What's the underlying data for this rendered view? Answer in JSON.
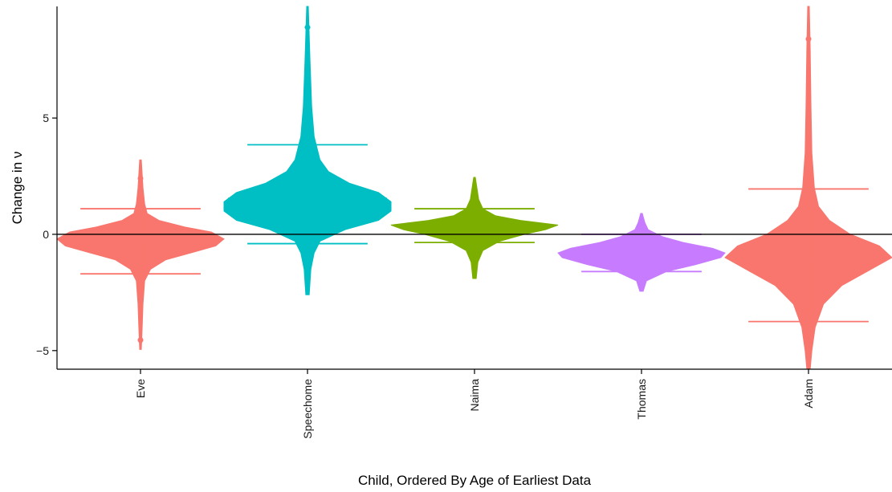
{
  "chart_data": {
    "type": "violin",
    "xlabel": "Child, Ordered By Age of Earliest Data",
    "ylabel": "Change in ν",
    "ylim": [
      -5.8,
      9.8
    ],
    "yticks": [
      -5,
      0,
      5
    ],
    "reference_line_y": 0,
    "grid": false,
    "legend": "none",
    "categories": [
      "Eve",
      "Speechome",
      "Naima",
      "Thomas",
      "Adam"
    ],
    "series": [
      {
        "category": "Eve",
        "color": "#F8766D",
        "mean": -0.25,
        "ci_upper": 1.1,
        "ci_lower": -1.7,
        "median": -0.2,
        "min": -4.95,
        "max": 3.2,
        "outlier_high": 2.4,
        "outlier_low": -4.55,
        "density_profile": [
          [
            -4.95,
            0.01
          ],
          [
            -4.0,
            0.02
          ],
          [
            -3.0,
            0.03
          ],
          [
            -2.0,
            0.05
          ],
          [
            -1.5,
            0.12
          ],
          [
            -1.1,
            0.3
          ],
          [
            -0.8,
            0.6
          ],
          [
            -0.5,
            0.9
          ],
          [
            -0.2,
            1.0
          ],
          [
            0.1,
            0.85
          ],
          [
            0.3,
            0.55
          ],
          [
            0.6,
            0.22
          ],
          [
            0.9,
            0.08
          ],
          [
            1.3,
            0.05
          ],
          [
            2.0,
            0.03
          ],
          [
            3.2,
            0.01
          ]
        ]
      },
      {
        "category": "Speechome",
        "color": "#00BFC4",
        "mean": 1.55,
        "ci_upper": 3.85,
        "ci_lower": -0.4,
        "median": 1.4,
        "min": -2.6,
        "max": 9.8,
        "outlier_high": 8.9,
        "outlier_low": -1.75,
        "density_profile": [
          [
            -2.6,
            0.02
          ],
          [
            -1.5,
            0.04
          ],
          [
            -0.8,
            0.08
          ],
          [
            -0.3,
            0.15
          ],
          [
            0.2,
            0.45
          ],
          [
            0.6,
            0.85
          ],
          [
            1.0,
            1.0
          ],
          [
            1.4,
            1.0
          ],
          [
            1.8,
            0.85
          ],
          [
            2.2,
            0.5
          ],
          [
            2.7,
            0.25
          ],
          [
            3.2,
            0.15
          ],
          [
            4.2,
            0.08
          ],
          [
            5.5,
            0.05
          ],
          [
            7.5,
            0.03
          ],
          [
            9.8,
            0.01
          ]
        ]
      },
      {
        "category": "Naima",
        "color": "#7CAE00",
        "mean": 0.4,
        "ci_upper": 1.1,
        "ci_lower": -0.35,
        "median": 0.4,
        "min": -1.9,
        "max": 2.45,
        "outlier_high": 1.95,
        "outlier_low": -1.45,
        "density_profile": [
          [
            -1.9,
            0.02
          ],
          [
            -1.2,
            0.04
          ],
          [
            -0.7,
            0.1
          ],
          [
            -0.3,
            0.3
          ],
          [
            0.0,
            0.6
          ],
          [
            0.2,
            0.85
          ],
          [
            0.4,
            1.0
          ],
          [
            0.6,
            0.55
          ],
          [
            0.8,
            0.25
          ],
          [
            1.1,
            0.1
          ],
          [
            1.5,
            0.05
          ],
          [
            2.45,
            0.01
          ]
        ]
      },
      {
        "category": "Thomas",
        "color": "#C77CFF",
        "mean": -0.8,
        "ci_upper": 0.0,
        "ci_lower": -1.6,
        "median": -0.8,
        "min": -2.45,
        "max": 0.9,
        "outlier_high": 0.6,
        "outlier_low": -2.2,
        "density_profile": [
          [
            -2.45,
            0.02
          ],
          [
            -2.0,
            0.06
          ],
          [
            -1.6,
            0.3
          ],
          [
            -1.3,
            0.65
          ],
          [
            -1.0,
            0.95
          ],
          [
            -0.8,
            1.0
          ],
          [
            -0.6,
            0.85
          ],
          [
            -0.35,
            0.5
          ],
          [
            -0.1,
            0.25
          ],
          [
            0.2,
            0.08
          ],
          [
            0.5,
            0.04
          ],
          [
            0.9,
            0.01
          ]
        ]
      },
      {
        "category": "Adam",
        "color": "#F8766D",
        "mean": -1.05,
        "ci_upper": 1.95,
        "ci_lower": -3.75,
        "median": -1.05,
        "min": -5.8,
        "max": 9.8,
        "outlier_high": 8.4,
        "outlier_low": null,
        "density_profile": [
          [
            -5.8,
            0.02
          ],
          [
            -5.0,
            0.04
          ],
          [
            -4.0,
            0.08
          ],
          [
            -3.0,
            0.18
          ],
          [
            -2.2,
            0.4
          ],
          [
            -1.5,
            0.75
          ],
          [
            -1.0,
            1.0
          ],
          [
            -0.5,
            0.85
          ],
          [
            0.0,
            0.5
          ],
          [
            0.6,
            0.25
          ],
          [
            1.2,
            0.12
          ],
          [
            2.0,
            0.07
          ],
          [
            3.5,
            0.04
          ],
          [
            5.5,
            0.03
          ],
          [
            8.0,
            0.02
          ],
          [
            9.8,
            0.01
          ]
        ]
      }
    ]
  }
}
